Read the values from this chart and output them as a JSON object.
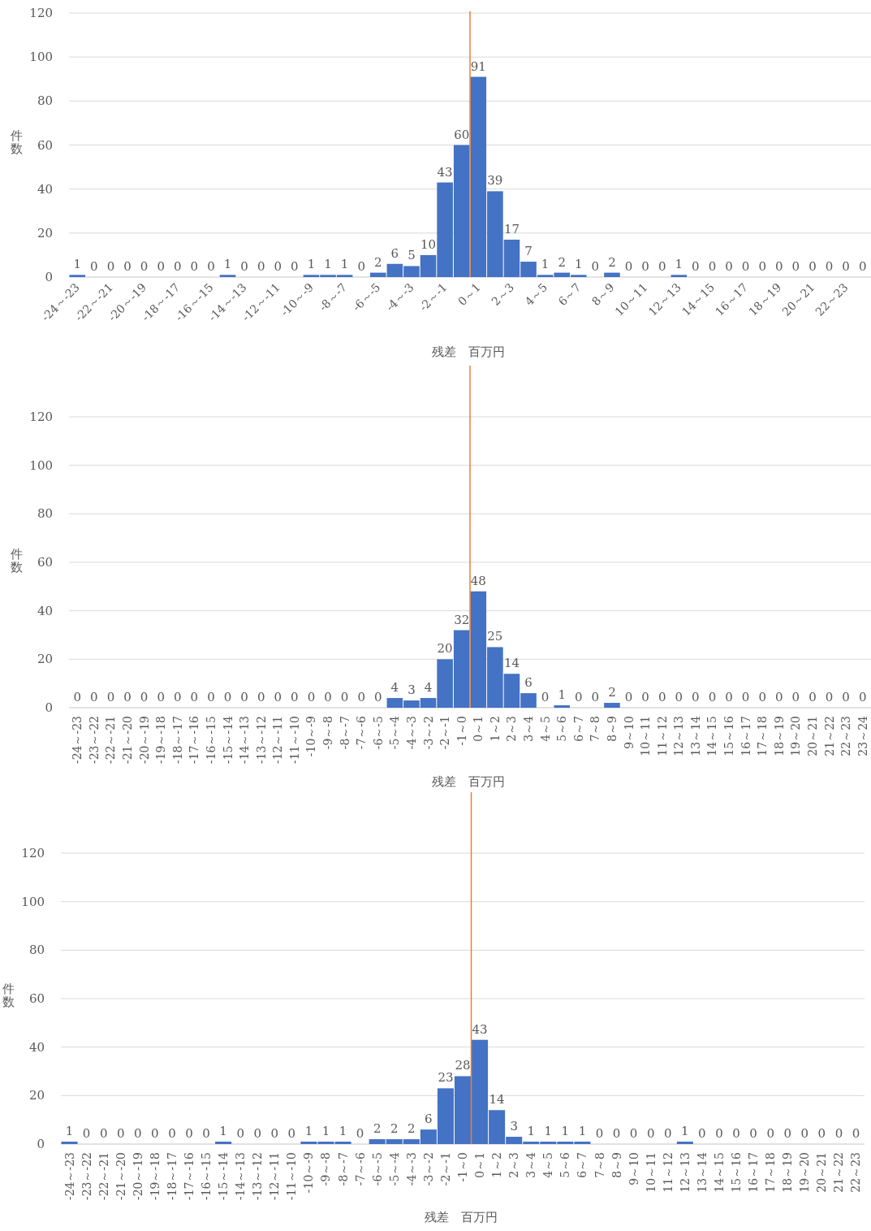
{
  "chart_data": [
    {
      "type": "bar",
      "xlabel": "残差　百万円",
      "ylabel": "件数",
      "color": "#4472c4",
      "ylim": [
        0,
        120
      ],
      "yticks": [
        0,
        20,
        40,
        60,
        80,
        100,
        120
      ],
      "grid": "y",
      "data_labels": true,
      "categories": [
        "-24～-23",
        null,
        "-22～-21",
        null,
        "-20～-19",
        null,
        "-18～-17",
        null,
        "-16～-15",
        null,
        "-14～-13",
        null,
        "-12～-11",
        null,
        "-10～-9",
        null,
        "-8～-7",
        null,
        "-6～-5",
        null,
        "-4～-3",
        null,
        "-2～-1",
        null,
        "0～1",
        null,
        "2～3",
        null,
        "4～5",
        null,
        "6～7",
        null,
        "8～9",
        null,
        "10～11",
        null,
        "12～13",
        null,
        "14～15",
        null,
        "16～17",
        null,
        "18～19",
        null,
        "20～21",
        null,
        "22～23",
        null
      ],
      "values": [
        1,
        0,
        0,
        0,
        0,
        0,
        0,
        0,
        0,
        1,
        0,
        0,
        0,
        0,
        1,
        1,
        1,
        0,
        2,
        6,
        5,
        10,
        43,
        60,
        91,
        39,
        17,
        7,
        1,
        2,
        1,
        0,
        2,
        0,
        0,
        0,
        1,
        0,
        0,
        0,
        0,
        0,
        0,
        0,
        0,
        0,
        0,
        0
      ],
      "ref_lines": [
        {
          "axis": "x",
          "value": "0～1",
          "color": "#ed7d31"
        }
      ]
    },
    {
      "type": "bar",
      "xlabel": "残差　百万円",
      "ylabel": "件数",
      "color": "#4472c4",
      "ylim": [
        0,
        120
      ],
      "yticks": [
        0,
        20,
        40,
        60,
        80,
        100,
        120
      ],
      "grid": "y",
      "data_labels": true,
      "categories": [
        "-24～-23",
        "-23～-22",
        "-22～-21",
        "-21～-20",
        "-20～-19",
        "-19～-18",
        "-18～-17",
        "-17～-16",
        "-16～-15",
        "-15～-14",
        "-14～-13",
        "-13～-12",
        "-12～-11",
        "-11～-10",
        "-10～-9",
        "-9～-8",
        "-8～-7",
        "-7～-6",
        "-6～-5",
        "-5～-4",
        "-4～-3",
        "-3～-2",
        "-2～-1",
        "-1～0",
        "0～1",
        "1～2",
        "2～3",
        "3～4",
        "4～5",
        "5～6",
        "6～7",
        "7～8",
        "8～9",
        "9～10",
        "10～11",
        "11～12",
        "12～13",
        "13～14",
        "14～15",
        "15～16",
        "16～17",
        "17～18",
        "18～19",
        "19～20",
        "20～21",
        "21～22",
        "22～23",
        "23～24"
      ],
      "values": [
        0,
        0,
        0,
        0,
        0,
        0,
        0,
        0,
        0,
        0,
        0,
        0,
        0,
        0,
        0,
        0,
        0,
        0,
        0,
        4,
        3,
        4,
        20,
        32,
        48,
        25,
        14,
        6,
        0,
        1,
        0,
        0,
        2,
        0,
        0,
        0,
        0,
        0,
        0,
        0,
        0,
        0,
        0,
        0,
        0,
        0,
        0,
        0
      ],
      "ref_lines": [
        {
          "axis": "x",
          "value": "0～1",
          "color": "#ed7d31"
        }
      ]
    },
    {
      "type": "bar",
      "xlabel": "残差　百万円",
      "ylabel": "件数",
      "color": "#4472c4",
      "ylim": [
        0,
        120
      ],
      "yticks": [
        0,
        20,
        40,
        60,
        80,
        100,
        120
      ],
      "grid": "y",
      "data_labels": true,
      "categories": [
        "-24～-23",
        "-23～-22",
        "-22～-21",
        "-21～-20",
        "-20～-19",
        "-19～-18",
        "-18～-17",
        "-17～-16",
        "-16～-15",
        "-15～-14",
        "-14～-13",
        "-13～-12",
        "-12～-11",
        "-11～-10",
        "-10～-9",
        "-9～-8",
        "-8～-7",
        "-7～-6",
        "-6～-5",
        "-5～-4",
        "-4～-3",
        "-3～-2",
        "-2～-1",
        "-1～0",
        "0～1",
        "1～2",
        "2～3",
        "3～4",
        "4～5",
        "5～6",
        "6～7",
        "7～8",
        "8～9",
        "9～10",
        "10～11",
        "11～12",
        "12～13",
        "13～14",
        "14～15",
        "15～16",
        "16～17",
        "17～18",
        "18～19",
        "19～20",
        "20～21",
        "21～22",
        "22～23"
      ],
      "values": [
        1,
        0,
        0,
        0,
        0,
        0,
        0,
        0,
        0,
        1,
        0,
        0,
        0,
        0,
        1,
        1,
        1,
        0,
        2,
        2,
        2,
        6,
        23,
        28,
        43,
        14,
        3,
        1,
        1,
        1,
        1,
        0,
        0,
        0,
        0,
        0,
        1,
        0,
        0,
        0,
        0,
        0,
        0,
        0,
        0,
        0,
        0
      ],
      "ref_lines": [
        {
          "axis": "x",
          "value": "0～1",
          "color": "#ed7d31"
        }
      ]
    }
  ]
}
